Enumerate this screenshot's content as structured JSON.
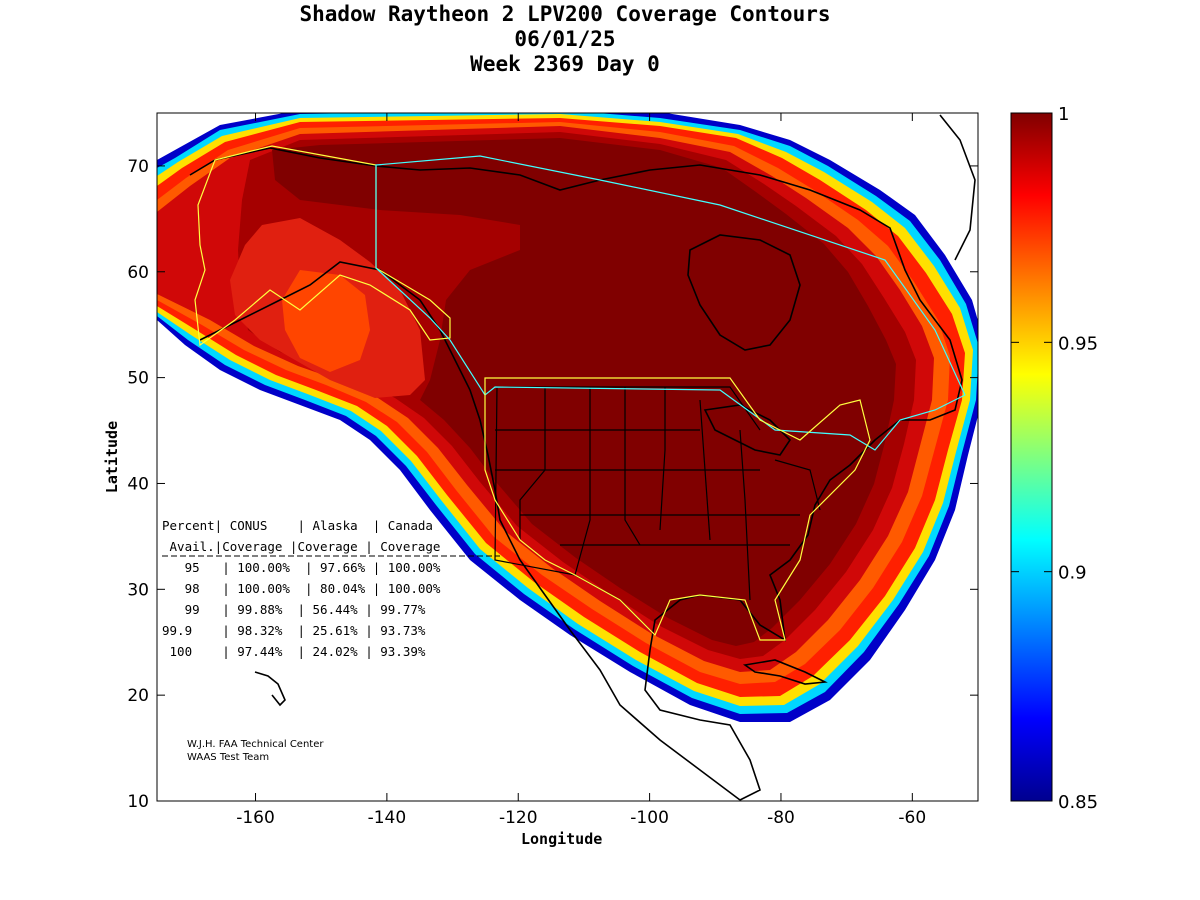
{
  "title": {
    "line1": "Shadow Raytheon 2 LPV200 Coverage Contours",
    "line2": "06/01/25",
    "line3": "Week 2369 Day 0"
  },
  "axes": {
    "xlabel": "Longitude",
    "ylabel": "Latitude",
    "xlim": [
      -175,
      -50
    ],
    "ylim": [
      10,
      75
    ],
    "xticks": [
      "-160",
      "-140",
      "-120",
      "-100",
      "-80",
      "-60"
    ],
    "yticks": [
      "10",
      "20",
      "30",
      "40",
      "50",
      "60",
      "70"
    ]
  },
  "colorbar": {
    "range": [
      0.85,
      1
    ],
    "ticks": [
      "1",
      "0.95",
      "0.9",
      "0.85"
    ]
  },
  "table": {
    "rows": [
      "Percent| CONUS    | Alaska  | Canada",
      " Avail.|Coverage |Coverage | Coverage",
      "   95   | 100.00%  | 97.66% | 100.00%",
      "   98   | 100.00%  | 80.04% | 100.00%",
      "   99   | 99.88%  | 56.44% | 99.77%",
      "99.9    | 98.32%  | 25.61% | 93.73%",
      " 100    | 97.44%  | 24.02% | 93.39%"
    ]
  },
  "credit": {
    "line1": "W.J.H. FAA Technical Center",
    "line2": "WAAS Test Team"
  },
  "map_data": {
    "type": "contour",
    "variable": "LPV200 availability",
    "regions": [
      "CONUS",
      "Alaska",
      "Canada"
    ],
    "colors": {
      "high": "#7f0000",
      "mid_high": "#e01010",
      "mid": "#ff5000",
      "low": "#00008f"
    }
  }
}
